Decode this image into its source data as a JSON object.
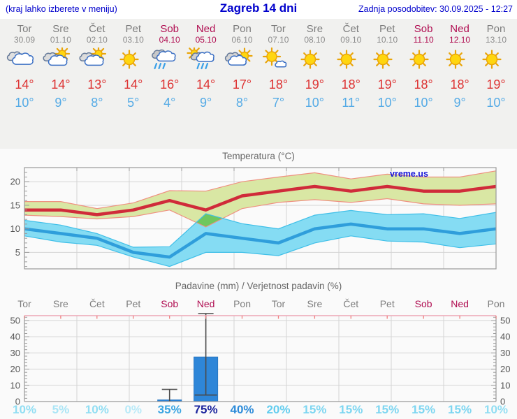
{
  "header": {
    "left_note": "(kraj lahko izberete v meniju)",
    "title": "Zagreb 14 dni",
    "updated": "Zadnja posodobitev: 30.09.2025 - 12:27"
  },
  "colors": {
    "header_text": "#0000cc",
    "weekend": "#b00d51",
    "weekday": "#7d7d7d",
    "tmax_text": "#dd3333",
    "tmin_text": "#55abe6",
    "line_max": "#d02b3a",
    "line_min": "#2f9edb",
    "band_max": "#d9e7a4",
    "band_min": "#85dcf3",
    "band_max_edge": "#ef9080",
    "band_min_edge": "#3fbfe8",
    "overlap": "#6fc75e",
    "bar": "#2e86d8",
    "bar_edge": "#2877c2",
    "whisker": "#4a4a4a",
    "grid": "#d4d4d4",
    "axis": "#9a9a9a",
    "precip_top_axis": "#eda6b4",
    "precip_day_tick": "#f08080",
    "tick_label": "#555555",
    "watermark": "#1717d8"
  },
  "days": [
    {
      "name": "Tor",
      "date": "30.09",
      "icon": "cloudy",
      "tmax": "14°",
      "tmin": "10°",
      "weekend": false
    },
    {
      "name": "Sre",
      "date": "01.10",
      "icon": "sun-clouds",
      "tmax": "14°",
      "tmin": "9°",
      "weekend": false
    },
    {
      "name": "Čet",
      "date": "02.10",
      "icon": "sun-clouds",
      "tmax": "13°",
      "tmin": "8°",
      "weekend": false
    },
    {
      "name": "Pet",
      "date": "03.10",
      "icon": "sunny",
      "tmax": "14°",
      "tmin": "5°",
      "weekend": false
    },
    {
      "name": "Sob",
      "date": "04.10",
      "icon": "rain",
      "tmax": "16°",
      "tmin": "4°",
      "weekend": true
    },
    {
      "name": "Ned",
      "date": "05.10",
      "icon": "sun-rain",
      "tmax": "14°",
      "tmin": "9°",
      "weekend": true
    },
    {
      "name": "Pon",
      "date": "06.10",
      "icon": "cloud-sun",
      "tmax": "17°",
      "tmin": "8°",
      "weekend": false
    },
    {
      "name": "Tor",
      "date": "07.10",
      "icon": "sun-small-cloud",
      "tmax": "18°",
      "tmin": "7°",
      "weekend": false
    },
    {
      "name": "Sre",
      "date": "08.10",
      "icon": "sunny",
      "tmax": "19°",
      "tmin": "10°",
      "weekend": false
    },
    {
      "name": "Čet",
      "date": "09.10",
      "icon": "sunny",
      "tmax": "18°",
      "tmin": "11°",
      "weekend": false
    },
    {
      "name": "Pet",
      "date": "10.10",
      "icon": "sunny",
      "tmax": "19°",
      "tmin": "10°",
      "weekend": false
    },
    {
      "name": "Sob",
      "date": "11.10",
      "icon": "sunny",
      "tmax": "18°",
      "tmin": "10°",
      "weekend": true
    },
    {
      "name": "Ned",
      "date": "12.10",
      "icon": "sunny",
      "tmax": "18°",
      "tmin": "9°",
      "weekend": true
    },
    {
      "name": "Pon",
      "date": "13.10",
      "icon": "sunny",
      "tmax": "19°",
      "tmin": "10°",
      "weekend": false
    }
  ],
  "chart_data": [
    {
      "type": "line",
      "title": "Temperatura (°C)",
      "watermark": "vreme.us",
      "categories": [
        "Tor",
        "Sre",
        "Čet",
        "Pet",
        "Sob",
        "Ned",
        "Pon",
        "Tor",
        "Sre",
        "Čet",
        "Pet",
        "Sob",
        "Ned",
        "Pon"
      ],
      "ylim": [
        1.5,
        23
      ],
      "yticks": [
        5,
        10,
        15,
        20
      ],
      "series": [
        {
          "name": "t_max",
          "values": [
            14,
            14,
            13,
            14,
            16,
            14,
            17,
            18,
            19,
            18,
            19,
            18,
            18,
            19
          ]
        },
        {
          "name": "t_min",
          "values": [
            10,
            9,
            8,
            5,
            4,
            9,
            8,
            7,
            10,
            11,
            10,
            10,
            9,
            10
          ]
        },
        {
          "name": "t_max_band_upper",
          "values": [
            15.8,
            15.8,
            14.3,
            15.5,
            18.1,
            18,
            20,
            21,
            21.9,
            20.6,
            21.6,
            21,
            21,
            22.3
          ]
        },
        {
          "name": "t_max_band_lower",
          "values": [
            12.9,
            12.6,
            12.1,
            12.6,
            14,
            10.4,
            14.3,
            15.6,
            16.2,
            15.6,
            16.4,
            15.3,
            15,
            15.3
          ]
        },
        {
          "name": "t_min_band_upper",
          "values": [
            11.8,
            10.8,
            9,
            6.1,
            6.2,
            13.2,
            11.1,
            10,
            12.9,
            13.9,
            13,
            13.2,
            12.2,
            13.5
          ]
        },
        {
          "name": "t_min_band_lower",
          "values": [
            8.5,
            7.2,
            6.5,
            4,
            2,
            5,
            5,
            4.3,
            7,
            8.5,
            7.4,
            7.2,
            6,
            6.8
          ]
        }
      ],
      "overlap_patch": [
        [
          4.74,
          11.4
        ],
        [
          5,
          13.2
        ],
        [
          5.47,
          12.2
        ],
        [
          5,
          10.4
        ]
      ],
      "grid": true,
      "legend": false
    },
    {
      "type": "bar",
      "title": "Padavine (mm) / Verjetnost padavin (%)",
      "categories": [
        "Tor",
        "Sre",
        "Čet",
        "Pet",
        "Sob",
        "Ned",
        "Pon",
        "Tor",
        "Sre",
        "Čet",
        "Pet",
        "Sob",
        "Ned",
        "Pon"
      ],
      "ylim": [
        0,
        53
      ],
      "yticks": [
        0,
        10,
        20,
        30,
        40,
        50
      ],
      "values": [
        0,
        0,
        0,
        0,
        1,
        27.5,
        0,
        0,
        0,
        0,
        0,
        0,
        0,
        0
      ],
      "whiskers": {
        "4": [
          0,
          7.5
        ],
        "5": [
          4,
          54.3
        ]
      },
      "probabilities": [
        10,
        5,
        10,
        0,
        35,
        75,
        40,
        20,
        15,
        15,
        15,
        15,
        15,
        10
      ],
      "prob_suffix": "%",
      "prob_colors": {
        "0": "#b9eaf8",
        "5": "#a9e5f6",
        "10": "#91def3",
        "15": "#7dd6f1",
        "20": "#63cdef",
        "35": "#3ba5e2",
        "40": "#2c8bd9",
        "75": "#1a249d"
      },
      "grid": true,
      "legend": false
    }
  ]
}
